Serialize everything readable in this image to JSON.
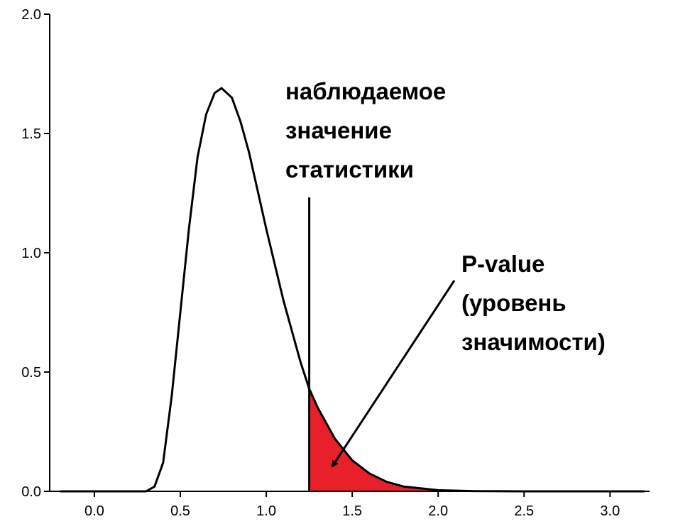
{
  "chart_data": {
    "type": "density",
    "x": [
      -0.2,
      0.2,
      0.3,
      0.35,
      0.4,
      0.45,
      0.5,
      0.55,
      0.6,
      0.65,
      0.7,
      0.74,
      0.8,
      0.85,
      0.9,
      1.0,
      1.1,
      1.2,
      1.25,
      1.3,
      1.4,
      1.5,
      1.6,
      1.7,
      1.8,
      2.0,
      2.2,
      2.5,
      3.0,
      3.2
    ],
    "series": [
      {
        "color": "#000000",
        "values": [
          0,
          0,
          0.0,
          0.02,
          0.12,
          0.4,
          0.75,
          1.1,
          1.4,
          1.58,
          1.67,
          1.69,
          1.65,
          1.55,
          1.42,
          1.1,
          0.8,
          0.54,
          0.43,
          0.35,
          0.22,
          0.13,
          0.075,
          0.04,
          0.02,
          0.005,
          0.001,
          0,
          0,
          0
        ]
      }
    ],
    "observed": 1.25,
    "shade_color": "#e8202a",
    "xlim": [
      -0.26,
      3.23
    ],
    "ylim": [
      0,
      2.0
    ],
    "xticks": [
      {
        "value": 0,
        "label": "0.0"
      },
      0.5,
      {
        "value": 1,
        "label": "1.0"
      },
      1.5,
      {
        "value": 2,
        "label": "2.0"
      },
      2.5,
      {
        "value": 3,
        "label": "3.0"
      }
    ],
    "yticks": [
      {
        "value": 0,
        "label": "0.0"
      },
      0.5,
      {
        "value": 1,
        "label": "1.0"
      },
      1.5,
      {
        "value": 2,
        "label": "2.0"
      }
    ],
    "annotations": [
      {
        "lines": [
          "наблюдаемое",
          "значение",
          "статистики"
        ]
      },
      {
        "lines": [
          "P-value",
          "(уровень",
          "значимости)"
        ]
      }
    ]
  }
}
